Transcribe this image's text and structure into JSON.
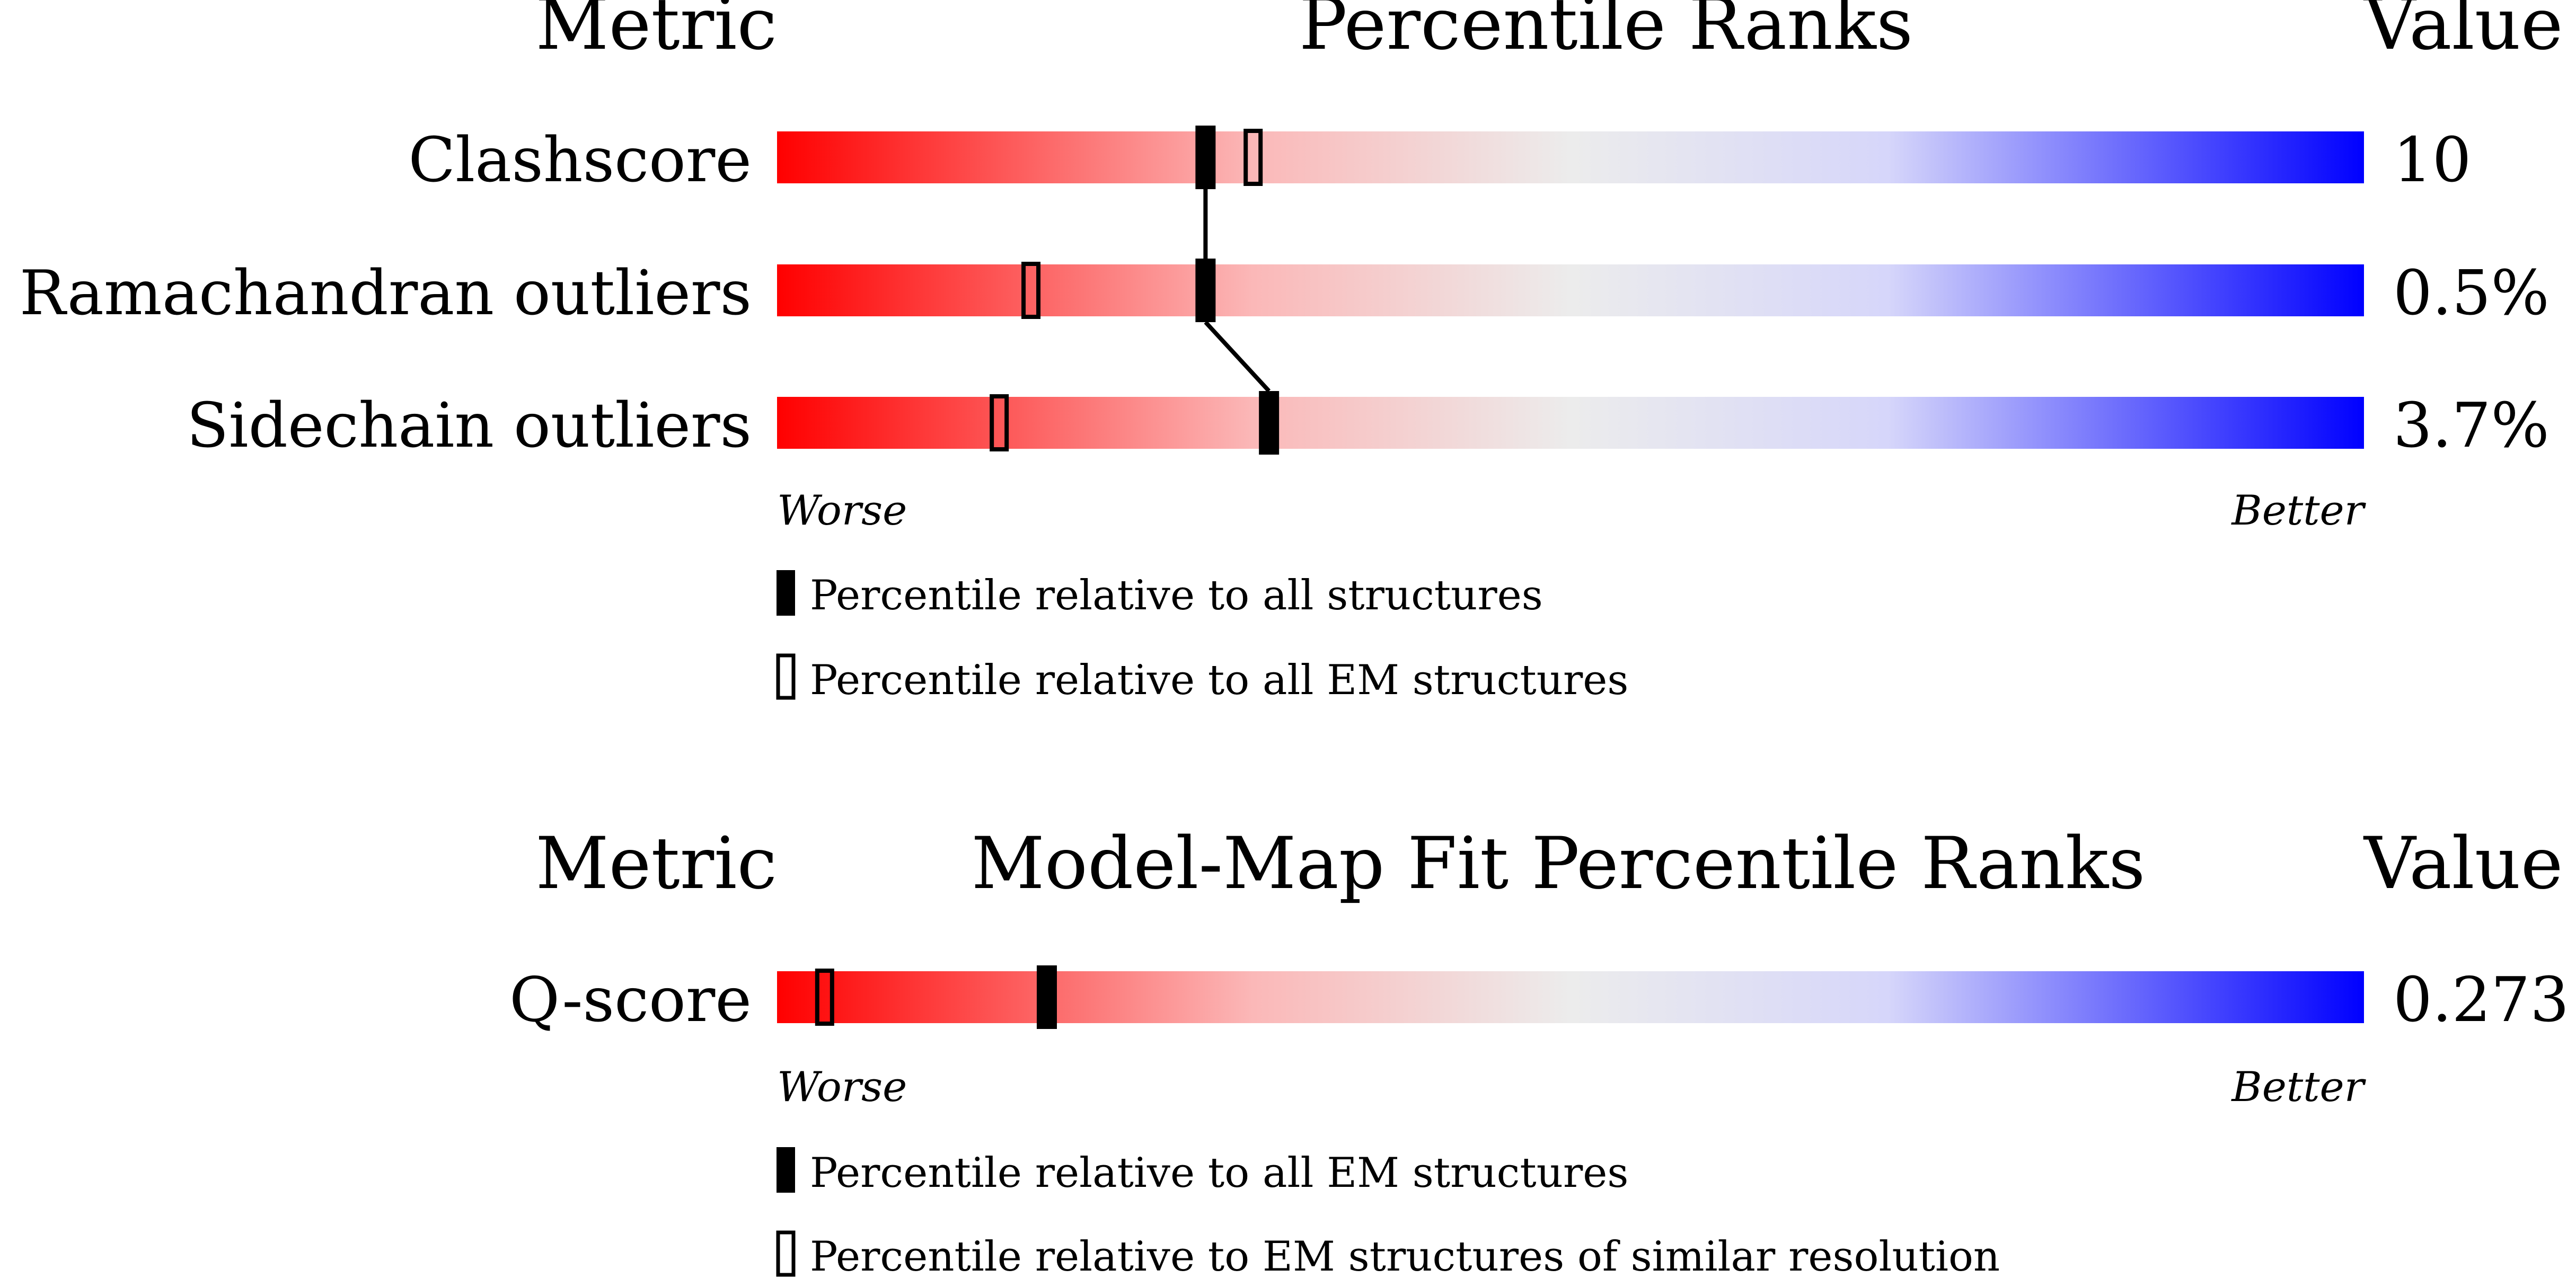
{
  "colors": {
    "worse": "#ff0000",
    "mid": "#eeeeee",
    "better": "#0000ff",
    "marker": "#000000"
  },
  "chart_data": [
    {
      "type": "percentile-bars",
      "header_metric": "Metric",
      "title": "Percentile Ranks",
      "header_value": "Value",
      "worse_label": "Worse",
      "better_label": "Better",
      "percentile_range": [
        0,
        100
      ],
      "metrics": [
        {
          "name": "Clashscore",
          "value": "10",
          "percentile_all": 27,
          "percentile_secondary": 30
        },
        {
          "name": "Ramachandran outliers",
          "value": "0.5%",
          "percentile_all": 27,
          "percentile_secondary": 16
        },
        {
          "name": "Sidechain outliers",
          "value": "3.7%",
          "percentile_all": 31,
          "percentile_secondary": 14
        }
      ],
      "legend": [
        {
          "marker": "filled",
          "label": "Percentile relative to all structures"
        },
        {
          "marker": "open",
          "label": "Percentile relative to all EM structures"
        }
      ]
    },
    {
      "type": "percentile-bars",
      "header_metric": "Metric",
      "title": "Model-Map Fit Percentile Ranks",
      "header_value": "Value",
      "worse_label": "Worse",
      "better_label": "Better",
      "percentile_range": [
        0,
        100
      ],
      "metrics": [
        {
          "name": "Q-score",
          "value": "0.273",
          "percentile_all": 17,
          "percentile_secondary": 3
        }
      ],
      "legend": [
        {
          "marker": "filled",
          "label": "Percentile relative to all EM structures"
        },
        {
          "marker": "open",
          "label": "Percentile relative to EM structures of similar resolution"
        }
      ]
    }
  ]
}
